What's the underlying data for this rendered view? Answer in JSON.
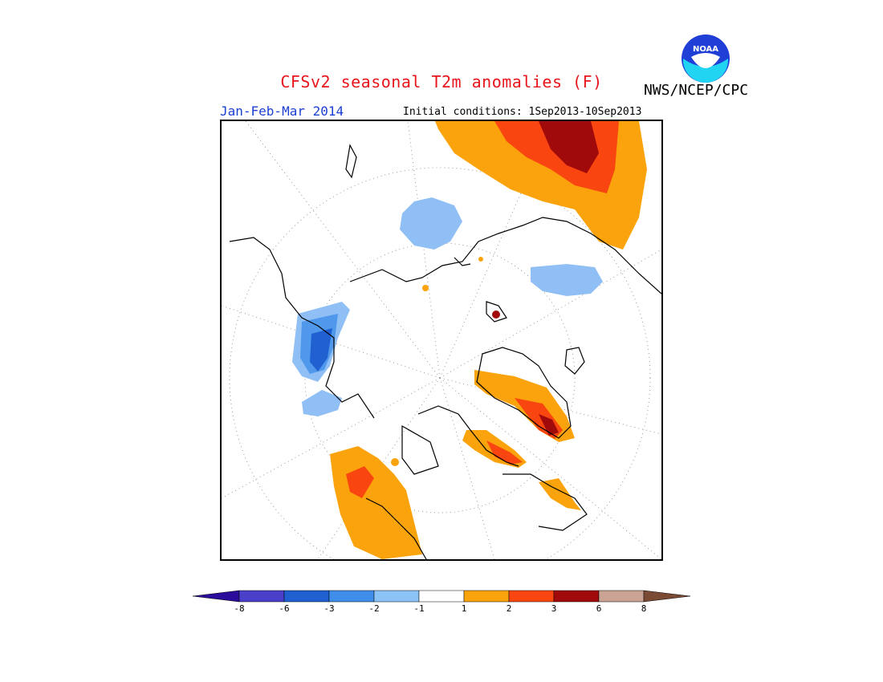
{
  "header": {
    "title": "CFSv2 seasonal T2m anomalies (F)",
    "agency": "NWS/NCEP/CPC",
    "period": "Jan-Feb-Mar 2014",
    "initial_conditions": "Initial conditions: 1Sep2013-10Sep2013",
    "logo_text": "NOAA"
  },
  "colors": {
    "title": "#e8141b",
    "period": "#1c3fd1",
    "cold_1": "#8fbff5",
    "cold_2": "#4f98ec",
    "cold_3": "#2060d0",
    "warm_1": "#fba30c",
    "warm_2": "#f94510",
    "warm_3": "#a00a0a"
  },
  "legend": {
    "bins": [
      {
        "color": "#2b0c9b"
      },
      {
        "color": "#4a3fc9"
      },
      {
        "color": "#1f5fd0"
      },
      {
        "color": "#3f8eea"
      },
      {
        "color": "#8cc3f7"
      },
      {
        "color": "#ffffff"
      },
      {
        "color": "#fba30c"
      },
      {
        "color": "#f94510"
      },
      {
        "color": "#a00a0a"
      },
      {
        "color": "#c9a393"
      },
      {
        "color": "#7b4a34"
      }
    ],
    "tick_labels": [
      "-8",
      "-6",
      "-3",
      "-2",
      "-1",
      "1",
      "2",
      "3",
      "6",
      "8"
    ]
  }
}
